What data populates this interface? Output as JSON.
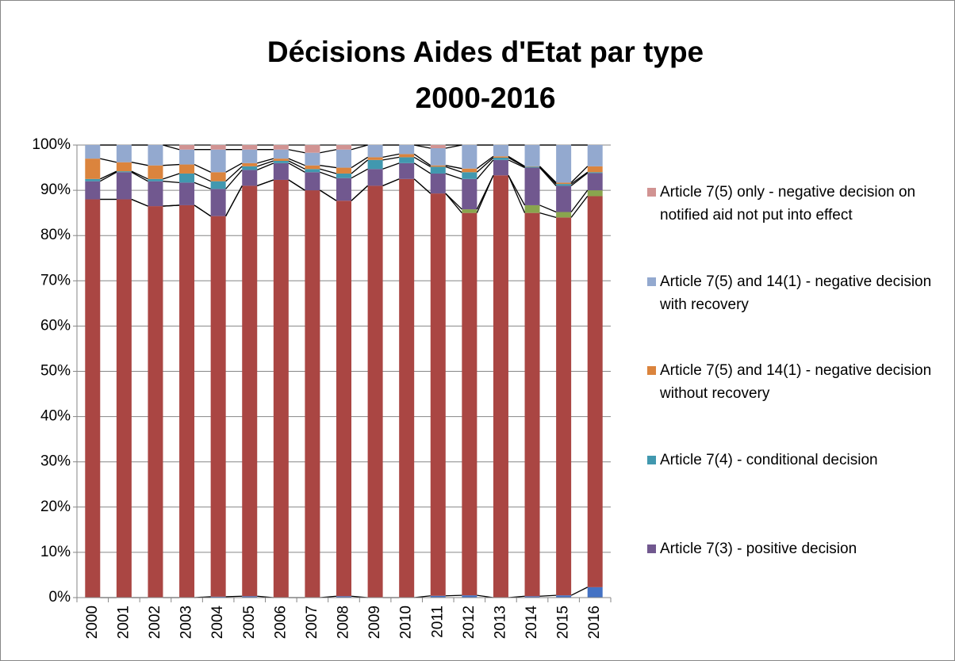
{
  "chart_data": {
    "type": "bar",
    "stacked": true,
    "title": [
      "Décisions Aides d'Etat par type",
      "2000-2016"
    ],
    "categories": [
      "2000",
      "2001",
      "2002",
      "2003",
      "2004",
      "2005",
      "2006",
      "2007",
      "2008",
      "2009",
      "2010",
      "2011",
      "2012",
      "2013",
      "2014",
      "2015",
      "2016"
    ],
    "series": [
      {
        "color": "#4472c4",
        "values": [
          0,
          0,
          0,
          0,
          0.2,
          0.3,
          0,
          0,
          0.3,
          0,
          0,
          0.4,
          0.5,
          0,
          0.3,
          0.5,
          2.3
        ]
      },
      {
        "color": "#aa4643",
        "values": [
          88,
          88,
          86.5,
          86.7,
          84.1,
          90.7,
          92.3,
          90,
          87.4,
          91,
          92.5,
          88.9,
          84.5,
          93.3,
          84.7,
          83.5,
          86.4
        ]
      },
      {
        "color": "#89a54e",
        "values": [
          0,
          0,
          0,
          0,
          0,
          0,
          0,
          0,
          0,
          0,
          0,
          0,
          0.8,
          0,
          1.7,
          1.2,
          1.3
        ]
      },
      {
        "name": "Article 7(3) - positive decision",
        "color": "#71588f",
        "values": [
          4,
          6,
          5.5,
          5,
          6,
          3.5,
          3.7,
          4,
          5,
          3.7,
          3.5,
          4.4,
          6.7,
          3.4,
          8.3,
          5.8,
          3.8
        ]
      },
      {
        "name": "Article 7(4) - conditional decision",
        "color": "#4198af",
        "values": [
          0.5,
          0.2,
          0.5,
          2,
          1.7,
          0.8,
          0.5,
          0.7,
          1,
          2,
          1.3,
          1.5,
          1.5,
          0.5,
          0.2,
          0.4,
          0.2
        ]
      },
      {
        "name": "Article 7(5) and 14(1) - negative decision without recovery",
        "color": "#db843d",
        "values": [
          4.5,
          2,
          3,
          2,
          2,
          0.7,
          0.5,
          0.8,
          1.3,
          0.6,
          0.7,
          0.3,
          0.8,
          0.3,
          0.1,
          0.3,
          1.3
        ]
      },
      {
        "name": "Article 7(5) and 14(1) - negative decision with recovery",
        "color": "#93a9cf",
        "values": [
          3,
          3.8,
          4.5,
          3.3,
          5,
          3,
          2,
          2.8,
          4,
          2.7,
          2,
          3.8,
          5.2,
          2.5,
          4.7,
          8.3,
          4.7
        ]
      },
      {
        "name": "Article 7(5) only - negative decision on notified aid not put into effect",
        "color": "#d19392",
        "values": [
          0,
          0,
          0,
          1,
          1,
          1,
          1,
          1.7,
          1,
          0,
          0,
          0.7,
          0,
          0,
          0,
          0,
          0
        ]
      }
    ],
    "ylim": [
      0,
      100
    ],
    "yticks": [
      {
        "value": 0,
        "label": "0%"
      },
      {
        "value": 10,
        "label": "10%"
      },
      {
        "value": 20,
        "label": "20%"
      },
      {
        "value": 30,
        "label": "30%"
      },
      {
        "value": 40,
        "label": "40%"
      },
      {
        "value": 50,
        "label": "50%"
      },
      {
        "value": 60,
        "label": "60%"
      },
      {
        "value": 70,
        "label": "70%"
      },
      {
        "value": 80,
        "label": "80%"
      },
      {
        "value": 90,
        "label": "90%"
      },
      {
        "value": 100,
        "label": "100%"
      }
    ],
    "grid": true,
    "legend": "right"
  }
}
